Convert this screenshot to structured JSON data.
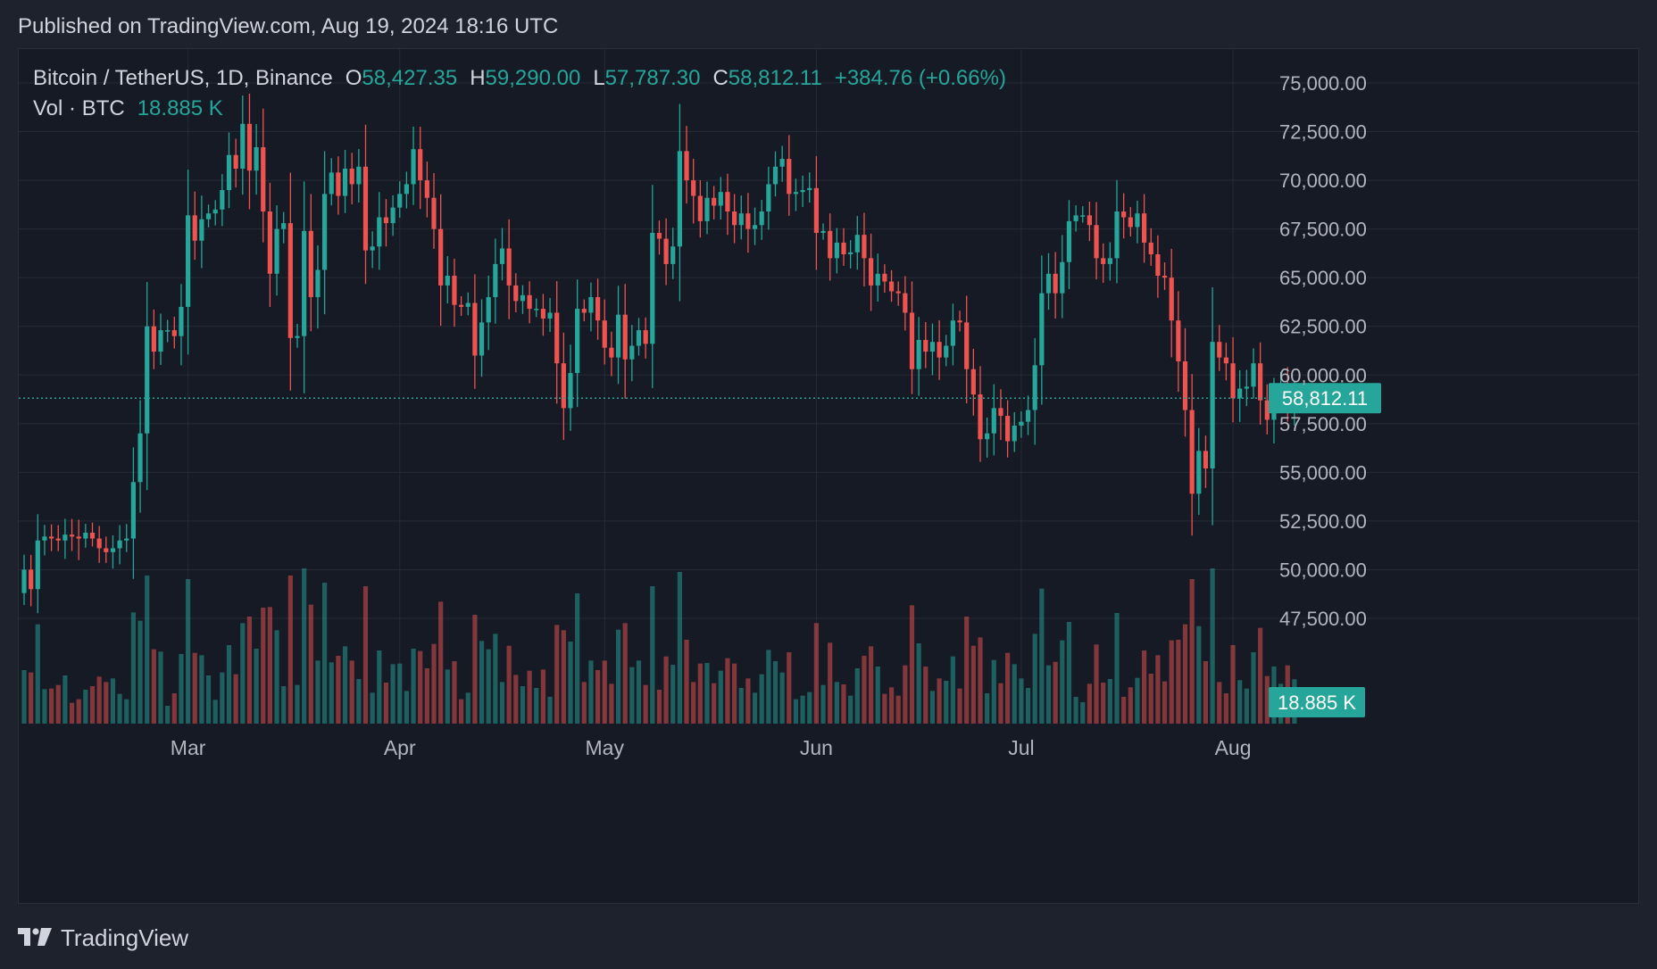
{
  "header": {
    "published": "Published on TradingView.com, Aug 19, 2024 18:16 UTC"
  },
  "legend": {
    "symbol": "Bitcoin / TetherUS, 1D, Binance",
    "open_label": "O",
    "open": "58,427.35",
    "high_label": "H",
    "high": "59,290.00",
    "low_label": "L",
    "low": "57,787.30",
    "close_label": "C",
    "close": "58,812.11",
    "change": "+384.76 (+0.66%)",
    "volume_label": "Vol · BTC",
    "volume": "18.885 K"
  },
  "footer": {
    "brand": "TradingView"
  },
  "colors": {
    "up": "#26a69a",
    "down": "#ef5350",
    "grid": "#262a35",
    "axis_text": "#b2b5be",
    "price_line": "#26a69a"
  },
  "chart_data": {
    "type": "candlestick",
    "title": "Bitcoin / TetherUS, 1D, Binance",
    "x_labels": [
      "Mar",
      "Apr",
      "May",
      "Jun",
      "Jul",
      "Aug"
    ],
    "x_label_dates": [
      "2024-03-01",
      "2024-04-01",
      "2024-05-01",
      "2024-06-01",
      "2024-07-01",
      "2024-08-01"
    ],
    "y_ticks": [
      47500,
      50000,
      52500,
      55000,
      57500,
      60000,
      62500,
      65000,
      67500,
      70000,
      72500,
      75000
    ],
    "y_tick_labels": [
      "47,500.00",
      "50,000.00",
      "52,500.00",
      "55,000.00",
      "57,500.00",
      "60,000.00",
      "62,500.00",
      "65,000.00",
      "67,500.00",
      "70,000.00",
      "72,500.00",
      "75,000.00"
    ],
    "ylim": [
      46000,
      76000
    ],
    "last_price": 58812.11,
    "last_price_label": "58,812.11",
    "last_volume_label": "18.885 K",
    "grid": true,
    "start_date": "2024-02-06",
    "closes": [
      50000,
      49000,
      51500,
      51700,
      51600,
      51500,
      51800,
      51700,
      51600,
      51900,
      51600,
      51100,
      50900,
      51100,
      51500,
      51600,
      54500,
      57000,
      62500,
      61200,
      62300,
      62300,
      62000,
      63500,
      68200,
      66900,
      68000,
      68300,
      68500,
      69500,
      71300,
      70600,
      72900,
      70500,
      71700,
      68400,
      65200,
      67500,
      67800,
      61900,
      62000,
      67400,
      64000,
      65400,
      69300,
      70400,
      69200,
      70600,
      69800,
      70700,
      66400,
      66600,
      68100,
      67800,
      68600,
      69300,
      69800,
      71600,
      70000,
      69100,
      67500,
      64600,
      65100,
      63600,
      63500,
      63700,
      61000,
      62700,
      64000,
      65700,
      66500,
      64600,
      63800,
      64100,
      63400,
      63400,
      62900,
      63200,
      60600,
      58300,
      60100,
      63400,
      63200,
      64000,
      62800,
      61400,
      60900,
      63100,
      60800,
      61500,
      62300,
      61600,
      67300,
      67000,
      65700,
      66600,
      71500,
      70000,
      69200,
      67900,
      69100,
      68700,
      69400,
      68400,
      67700,
      68300,
      67500,
      67700,
      68400,
      69800,
      70700,
      71100,
      69300,
      69400,
      69500,
      69600,
      67300,
      67400,
      66000,
      66800,
      66200,
      66300,
      67200,
      66000,
      64600,
      65200,
      64800,
      64300,
      64200,
      63200,
      60300,
      61800,
      61200,
      61700,
      60900,
      61500,
      62800,
      62700,
      60300,
      59000,
      56700,
      57000,
      58300,
      57900,
      56600,
      57400,
      57600,
      58200,
      60500,
      64200,
      65200,
      64200,
      65800,
      67900,
      68200,
      68200,
      67700,
      66000,
      65700,
      66000,
      68400,
      68100,
      67600,
      68300,
      66800,
      66200,
      65100,
      65000,
      62800,
      60700,
      58200,
      53900,
      56100,
      55200,
      61700,
      60900,
      60600,
      58800,
      59300,
      59400,
      60600,
      58700,
      57700,
      58900,
      59400,
      58400,
      58812
    ]
  }
}
